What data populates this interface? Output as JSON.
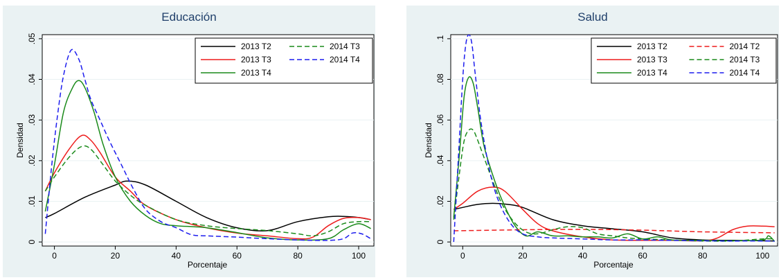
{
  "chart_data": [
    {
      "type": "line",
      "title": "Educación",
      "xlabel": "Porcentaje",
      "ylabel": "Densidad",
      "xlim": [
        -4,
        105
      ],
      "ylim": [
        -0.001,
        0.051
      ],
      "xticks": [
        0,
        20,
        40,
        60,
        80,
        100
      ],
      "xtick_labels": [
        "0",
        "20",
        "40",
        "60",
        "80",
        "100"
      ],
      "yticks": [
        0,
        0.01,
        0.02,
        0.03,
        0.04,
        0.05
      ],
      "ytick_labels": [
        "0",
        ".01",
        ".02",
        ".03",
        ".04",
        ".05"
      ],
      "grid": true,
      "legend_position": "top-right",
      "series": [
        {
          "name": "2013 T2",
          "color": "#000000",
          "dash": "solid",
          "x": [
            -3,
            0,
            10,
            20,
            24,
            30,
            40,
            50,
            60,
            70,
            80,
            90,
            95,
            100,
            104
          ],
          "y": [
            0.006,
            0.007,
            0.011,
            0.014,
            0.015,
            0.014,
            0.01,
            0.006,
            0.0035,
            0.0028,
            0.005,
            0.0062,
            0.0063,
            0.006,
            0.0055
          ]
        },
        {
          "name": "2013 T3",
          "color": "#ee1c1c",
          "dash": "solid",
          "x": [
            -3,
            0,
            5,
            9,
            12,
            15,
            20,
            25,
            30,
            40,
            50,
            60,
            70,
            80,
            85,
            90,
            95,
            100,
            104
          ],
          "y": [
            0.0125,
            0.017,
            0.023,
            0.0262,
            0.025,
            0.022,
            0.016,
            0.0125,
            0.009,
            0.0055,
            0.0035,
            0.0022,
            0.0015,
            0.0008,
            0.0012,
            0.004,
            0.0058,
            0.006,
            0.0055
          ]
        },
        {
          "name": "2013 T4",
          "color": "#1a8a1a",
          "dash": "solid",
          "x": [
            -3,
            0,
            3,
            6,
            8,
            10,
            13,
            16,
            20,
            25,
            30,
            35,
            40,
            50,
            60,
            70,
            80,
            90,
            95,
            100,
            104
          ],
          "y": [
            0.0075,
            0.019,
            0.032,
            0.038,
            0.0397,
            0.038,
            0.032,
            0.024,
            0.016,
            0.01,
            0.0065,
            0.0045,
            0.004,
            0.0035,
            0.0023,
            0.001,
            0.0005,
            0.0008,
            0.003,
            0.0045,
            0.0033
          ]
        },
        {
          "name": "2014 T3",
          "color": "#1a8a1a",
          "dash": "dash",
          "x": [
            -3,
            0,
            5,
            9,
            12,
            16,
            20,
            25,
            30,
            40,
            50,
            60,
            70,
            80,
            85,
            90,
            95,
            100,
            104
          ],
          "y": [
            0.0125,
            0.016,
            0.021,
            0.0235,
            0.0228,
            0.019,
            0.015,
            0.0115,
            0.009,
            0.0055,
            0.004,
            0.0033,
            0.0028,
            0.002,
            0.0015,
            0.0025,
            0.0045,
            0.005,
            0.005
          ]
        },
        {
          "name": "2014 T4",
          "color": "#1c1cee",
          "dash": "dash",
          "x": [
            -3,
            -1,
            1,
            3,
            5.5,
            8,
            10,
            12,
            15,
            18,
            22,
            26,
            30,
            35,
            40,
            45,
            50,
            60,
            70,
            80,
            90,
            95,
            98,
            101,
            104
          ],
          "y": [
            0.002,
            0.018,
            0.031,
            0.041,
            0.0472,
            0.045,
            0.04,
            0.035,
            0.03,
            0.025,
            0.019,
            0.013,
            0.008,
            0.005,
            0.0035,
            0.0018,
            0.0015,
            0.0012,
            0.0008,
            0.0005,
            0.0004,
            0.0008,
            0.0022,
            0.002,
            0.0008
          ]
        }
      ]
    },
    {
      "type": "line",
      "title": "Salud",
      "xlabel": "Porcentaje",
      "ylabel": "Densidad",
      "xlim": [
        -4,
        105
      ],
      "ylim": [
        -0.002,
        0.102
      ],
      "xticks": [
        0,
        20,
        40,
        60,
        80,
        100
      ],
      "xtick_labels": [
        "0",
        "20",
        "40",
        "60",
        "80",
        "100"
      ],
      "yticks": [
        0,
        0.02,
        0.04,
        0.06,
        0.08,
        0.1
      ],
      "ytick_labels": [
        "0",
        ".02",
        ".04",
        ".06",
        ".08",
        ".1"
      ],
      "grid": true,
      "legend_position": "top-right",
      "series": [
        {
          "name": "2013 T2",
          "color": "#000000",
          "dash": "solid",
          "x": [
            -3,
            0,
            5,
            10,
            15,
            20,
            30,
            40,
            50,
            60,
            70,
            80,
            90,
            100,
            104
          ],
          "y": [
            0.016,
            0.017,
            0.0185,
            0.019,
            0.0185,
            0.017,
            0.011,
            0.008,
            0.0065,
            0.005,
            0.002,
            0.001,
            0.0008,
            0.0006,
            0.0005
          ]
        },
        {
          "name": "2013 T3",
          "color": "#ee1c1c",
          "dash": "solid",
          "x": [
            -3,
            0,
            5,
            10,
            14,
            20,
            25,
            30,
            40,
            50,
            60,
            70,
            80,
            85,
            90,
            95,
            100,
            104
          ],
          "y": [
            0.016,
            0.019,
            0.025,
            0.027,
            0.025,
            0.016,
            0.009,
            0.0055,
            0.0025,
            0.001,
            0.0008,
            0.0008,
            0.0006,
            0.002,
            0.006,
            0.0078,
            0.0078,
            0.0075
          ]
        },
        {
          "name": "2013 T4",
          "color": "#1a8a1a",
          "dash": "solid",
          "x": [
            -3,
            -1,
            0.5,
            2,
            3.5,
            5,
            7,
            10,
            13,
            17,
            21,
            25,
            30,
            35,
            40,
            45,
            50,
            55,
            60,
            65,
            70,
            80,
            90,
            100,
            102,
            104
          ],
          "y": [
            0.012,
            0.045,
            0.072,
            0.081,
            0.078,
            0.066,
            0.048,
            0.033,
            0.021,
            0.009,
            0.003,
            0.005,
            0.003,
            0.003,
            0.0025,
            0.0025,
            0.002,
            0.004,
            0.0015,
            0.0025,
            0.001,
            0.0008,
            0.0006,
            0.001,
            0.003,
            0.0003
          ]
        },
        {
          "name": "2014 T2",
          "color": "#ee1c1c",
          "dash": "dash",
          "x": [
            -3,
            20,
            40,
            60,
            80,
            104
          ],
          "y": [
            0.0055,
            0.006,
            0.0062,
            0.0058,
            0.005,
            0.0045
          ]
        },
        {
          "name": "2014 T3",
          "color": "#1a8a1a",
          "dash": "dash",
          "x": [
            -3,
            -1,
            0.5,
            2,
            3.5,
            5,
            7,
            10,
            13,
            17,
            21,
            25,
            30,
            35,
            40,
            45,
            50,
            55,
            60,
            70,
            80,
            90,
            100,
            104
          ],
          "y": [
            0.011,
            0.035,
            0.05,
            0.055,
            0.055,
            0.05,
            0.042,
            0.03,
            0.019,
            0.01,
            0.005,
            0.004,
            0.006,
            0.0075,
            0.007,
            0.004,
            0.003,
            0.002,
            0.0015,
            0.001,
            0.0005,
            0.0005,
            0.0015,
            0.0015
          ]
        },
        {
          "name": "2014 T4",
          "color": "#1c1cee",
          "dash": "dash",
          "x": [
            -3,
            -1.5,
            0,
            1,
            2,
            3,
            4,
            6,
            9,
            12,
            16,
            20,
            25,
            30,
            40,
            50,
            60,
            70,
            80,
            90,
            100,
            104
          ],
          "y": [
            0,
            0.04,
            0.08,
            0.097,
            0.102,
            0.098,
            0.085,
            0.06,
            0.035,
            0.02,
            0.009,
            0.004,
            0.0025,
            0.002,
            0.0015,
            0.001,
            0.001,
            0.0008,
            0.0006,
            0.0005,
            0.0005,
            0.0004
          ]
        }
      ]
    }
  ]
}
